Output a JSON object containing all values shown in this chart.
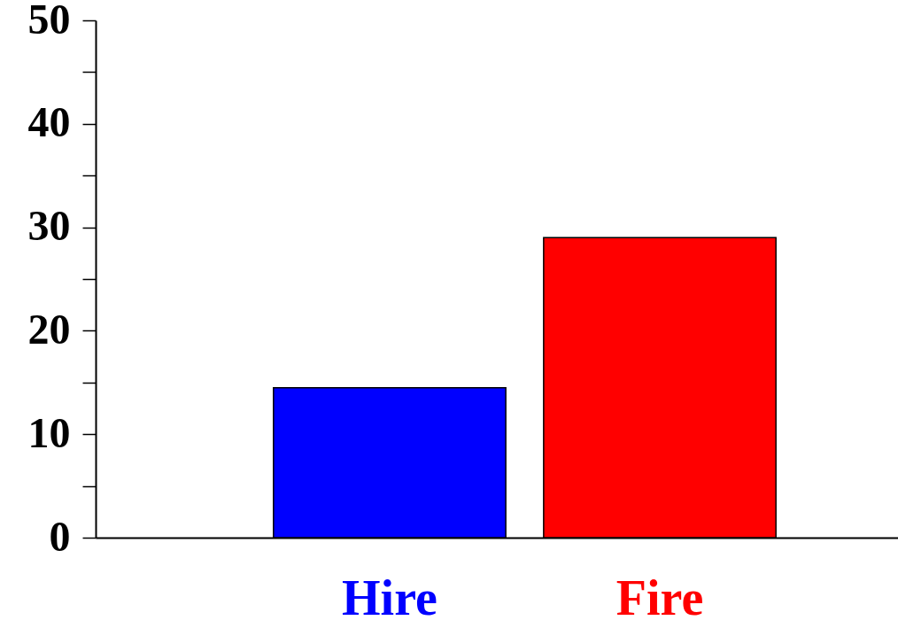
{
  "chart_data": {
    "type": "bar",
    "categories": [
      "Hire",
      "Fire"
    ],
    "values": [
      14.5,
      29
    ],
    "colors": [
      "#0000ff",
      "#ff0000"
    ],
    "ylim": [
      0,
      50
    ],
    "yticks": [
      0,
      {
        "value": 5,
        "label": null
      },
      10,
      {
        "value": 15,
        "label": null
      },
      20,
      {
        "value": 25,
        "label": null
      },
      30,
      {
        "value": 35,
        "label": null
      },
      40,
      {
        "value": 45,
        "label": null
      },
      50
    ],
    "grid": false
  }
}
